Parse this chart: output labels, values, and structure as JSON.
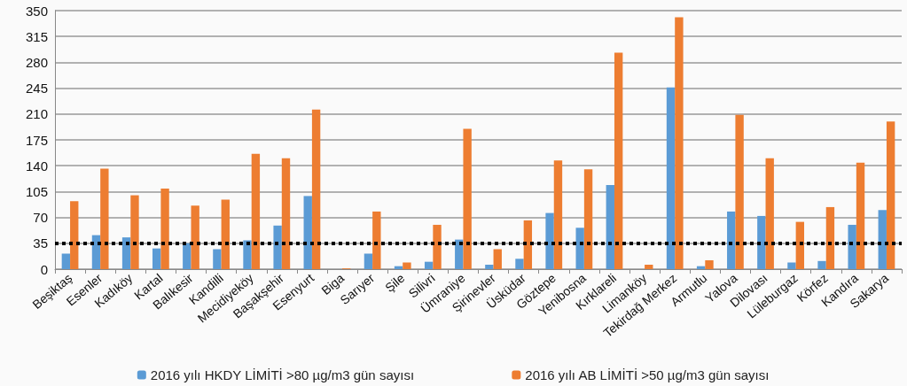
{
  "chart_data": {
    "type": "bar",
    "categories": [
      "Beşiktaş",
      "Esenler",
      "Kadıköy",
      "Kartal",
      "Balıkesir",
      "Kandilli",
      "Mecidiyeköy",
      "Başakşehir",
      "Esenyurt",
      "Biga",
      "Sarıyer",
      "Şile",
      "Silivri",
      "Ümraniye",
      "Şirinevler",
      "Üsküdar",
      "Göztepe",
      "Yenibosna",
      "Kırklareli",
      "Limanköy",
      "Tekirdağ Merkez",
      "Armutlu",
      "Yalova",
      "Dilovası",
      "Lüleburgaz",
      "Körfez",
      "Kandıra",
      "Sakarya"
    ],
    "series": [
      {
        "name": "2016 yılı HKDY LİMİTİ >80 µg/m3 gün sayısı",
        "color": "#5b9bd5",
        "values": [
          21,
          46,
          43,
          28,
          35,
          27,
          39,
          59,
          99,
          0,
          21,
          4,
          10,
          40,
          6,
          14,
          76,
          56,
          114,
          0,
          246,
          4,
          78,
          72,
          9,
          11,
          60,
          80
        ]
      },
      {
        "name": "2016 yılı AB LİMİTİ >50 µg/m3 gün sayısı",
        "color": "#ed7d31",
        "values": [
          92,
          136,
          100,
          109,
          86,
          94,
          156,
          150,
          216,
          1,
          78,
          9,
          60,
          190,
          27,
          66,
          147,
          135,
          293,
          6,
          341,
          12,
          209,
          150,
          64,
          84,
          144,
          200
        ]
      }
    ],
    "ylim": [
      0,
      350
    ],
    "yticks": [
      0,
      35,
      70,
      105,
      140,
      175,
      210,
      245,
      280,
      315,
      350
    ],
    "grid": "y",
    "legend": "bottom",
    "ref_lines": [
      {
        "axis": "y",
        "value": 35,
        "color": "#000000",
        "line_style": "dotted"
      }
    ]
  }
}
